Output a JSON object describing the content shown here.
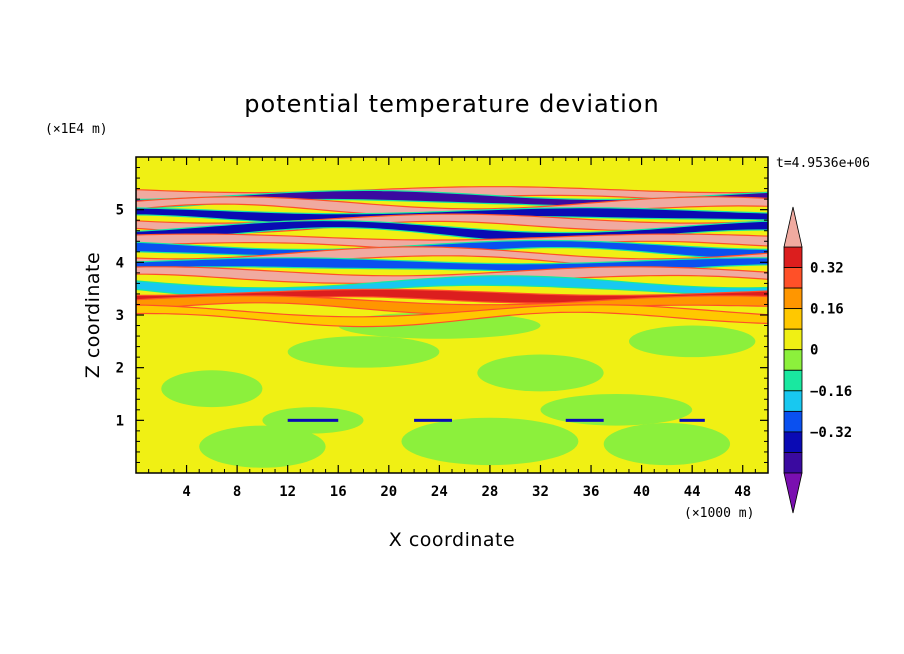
{
  "chart_data": {
    "type": "heatmap",
    "title": "potential temperature deviation",
    "xlabel": "X coordinate",
    "ylabel": "Z coordinate",
    "x_units": "(×1000 m)",
    "y_units": "(×1E4 m)",
    "time_label": "t=4.9536e+06",
    "xlim": [
      0,
      50
    ],
    "ylim": [
      0,
      6
    ],
    "x_ticks": [
      "4",
      "8",
      "12",
      "16",
      "20",
      "24",
      "28",
      "32",
      "36",
      "40",
      "44",
      "48"
    ],
    "x_tick_values": [
      4,
      8,
      12,
      16,
      20,
      24,
      28,
      32,
      36,
      40,
      44,
      48
    ],
    "y_ticks": [
      "1",
      "2",
      "3",
      "4",
      "5"
    ],
    "y_tick_values": [
      1,
      2,
      3,
      4,
      5
    ],
    "colorbar": {
      "levels": [
        -0.48,
        -0.4,
        -0.32,
        -0.24,
        -0.16,
        -0.08,
        0,
        0.08,
        0.16,
        0.24,
        0.32,
        0.4,
        0.48
      ],
      "colors": [
        "#7a0fb0",
        "#3a0aa0",
        "#0a0ab4",
        "#0a50f0",
        "#18c8f0",
        "#19e8a0",
        "#8cf03c",
        "#f0f014",
        "#ffc800",
        "#ff9600",
        "#ff5028",
        "#dc1e1e",
        "#f0aaa0"
      ],
      "tick_labels": [
        "0.32",
        "0.16",
        "0",
        "−0.16",
        "−0.32"
      ],
      "tick_values": [
        0.32,
        0.16,
        0,
        -0.16,
        -0.32
      ]
    },
    "field_description": "Near-zero deviations (green) below about 3E4 m; strong horizontally stratified alternating positive (pink/red) and negative (purple/blue) layers between about 3.2E4 m and 5.4E4 m; weak wave disturbances near 1E4 m.",
    "layers": [
      {
        "z": 5.3,
        "value": 0.44
      },
      {
        "z": 5.2,
        "value": -0.44
      },
      {
        "z": 5.05,
        "value": 0.44
      },
      {
        "z": 4.9,
        "value": -0.4
      },
      {
        "z": 4.75,
        "value": 0.44
      },
      {
        "z": 4.6,
        "value": -0.36
      },
      {
        "z": 4.4,
        "value": 0.44
      },
      {
        "z": 4.25,
        "value": -0.32
      },
      {
        "z": 4.1,
        "value": 0.4
      },
      {
        "z": 3.95,
        "value": -0.28
      },
      {
        "z": 3.75,
        "value": 0.44
      },
      {
        "z": 3.55,
        "value": -0.2
      },
      {
        "z": 3.35,
        "value": 0.36
      },
      {
        "z": 3.2,
        "value": 0.2
      },
      {
        "z": 3.0,
        "value": 0.08
      }
    ]
  }
}
